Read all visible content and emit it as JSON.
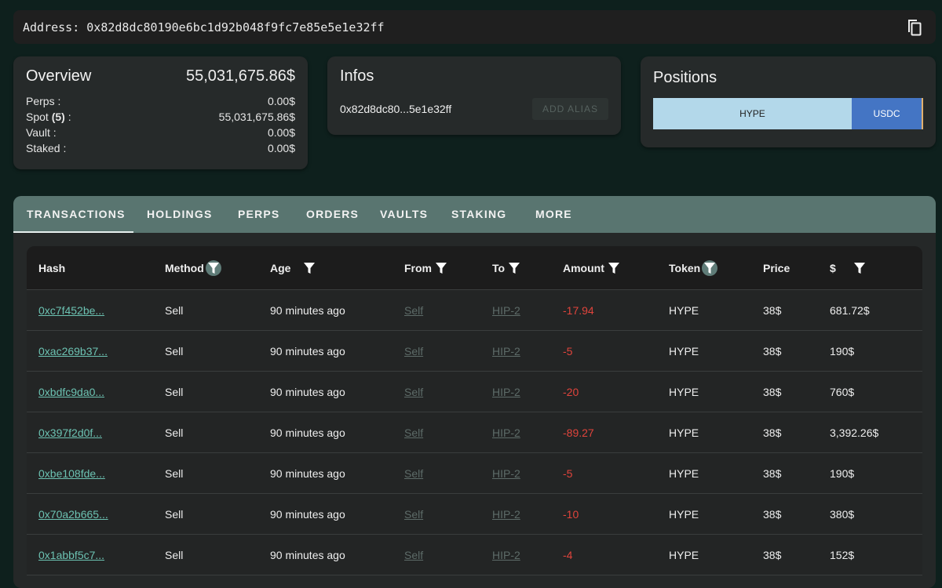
{
  "address": {
    "label": "Address: 0x82d8dc80190e6bc1d92b048f9fc7e85e5e1e32ff",
    "copy_icon": "copy-icon"
  },
  "overview": {
    "title": "Overview",
    "total": "55,031,675.86$",
    "rows": [
      {
        "label": "Perps :",
        "value": "0.00$"
      },
      {
        "label": "Spot",
        "count": "(5)",
        "suffix": " :",
        "value": "55,031,675.86$"
      },
      {
        "label": "Vault :",
        "value": "0.00$"
      },
      {
        "label": "Staked :",
        "value": "0.00$"
      }
    ]
  },
  "infos": {
    "title": "Infos",
    "short_address": "0x82d8dc80...5e1e32ff",
    "add_alias": "ADD ALIAS"
  },
  "positions": {
    "title": "Positions",
    "items": [
      {
        "label": "HYPE",
        "share_pct": 73.5,
        "color": "#b3d8ea"
      },
      {
        "label": "USDC",
        "share_pct": 26,
        "color": "#4475c4"
      },
      {
        "label": "",
        "share_pct": 0.5,
        "color": "#e0b070"
      }
    ]
  },
  "tabs": [
    "TRANSACTIONS",
    "HOLDINGS",
    "PERPS",
    "ORDERS",
    "VAULTS",
    "STAKING",
    "MORE"
  ],
  "active_tab": "TRANSACTIONS",
  "table": {
    "columns": [
      {
        "label": "Hash",
        "filter": false
      },
      {
        "label": "Method",
        "filter": true,
        "active": true
      },
      {
        "label": "Age",
        "filter": true
      },
      {
        "label": "From",
        "filter": true
      },
      {
        "label": "To",
        "filter": true
      },
      {
        "label": "Amount",
        "filter": true
      },
      {
        "label": "Token",
        "filter": true,
        "active": true
      },
      {
        "label": "Price",
        "filter": false
      },
      {
        "label": "$",
        "filter": true
      }
    ],
    "rows": [
      [
        "0xc7f452be...",
        "Sell",
        "90 minutes ago",
        "Self",
        "HIP-2",
        "-17.94",
        "HYPE",
        "38$",
        "681.72$"
      ],
      [
        "0xac269b37...",
        "Sell",
        "90 minutes ago",
        "Self",
        "HIP-2",
        "-5",
        "HYPE",
        "38$",
        "190$"
      ],
      [
        "0xbdfc9da0...",
        "Sell",
        "90 minutes ago",
        "Self",
        "HIP-2",
        "-20",
        "HYPE",
        "38$",
        "760$"
      ],
      [
        "0x397f2d0f...",
        "Sell",
        "90 minutes ago",
        "Self",
        "HIP-2",
        "-89.27",
        "HYPE",
        "38$",
        "3,392.26$"
      ],
      [
        "0xbe108fde...",
        "Sell",
        "90 minutes ago",
        "Self",
        "HIP-2",
        "-5",
        "HYPE",
        "38$",
        "190$"
      ],
      [
        "0x70a2b665...",
        "Sell",
        "90 minutes ago",
        "Self",
        "HIP-2",
        "-10",
        "HYPE",
        "38$",
        "380$"
      ],
      [
        "0x1abbf5c7...",
        "Sell",
        "90 minutes ago",
        "Self",
        "HIP-2",
        "-4",
        "HYPE",
        "38$",
        "152$"
      ]
    ]
  }
}
